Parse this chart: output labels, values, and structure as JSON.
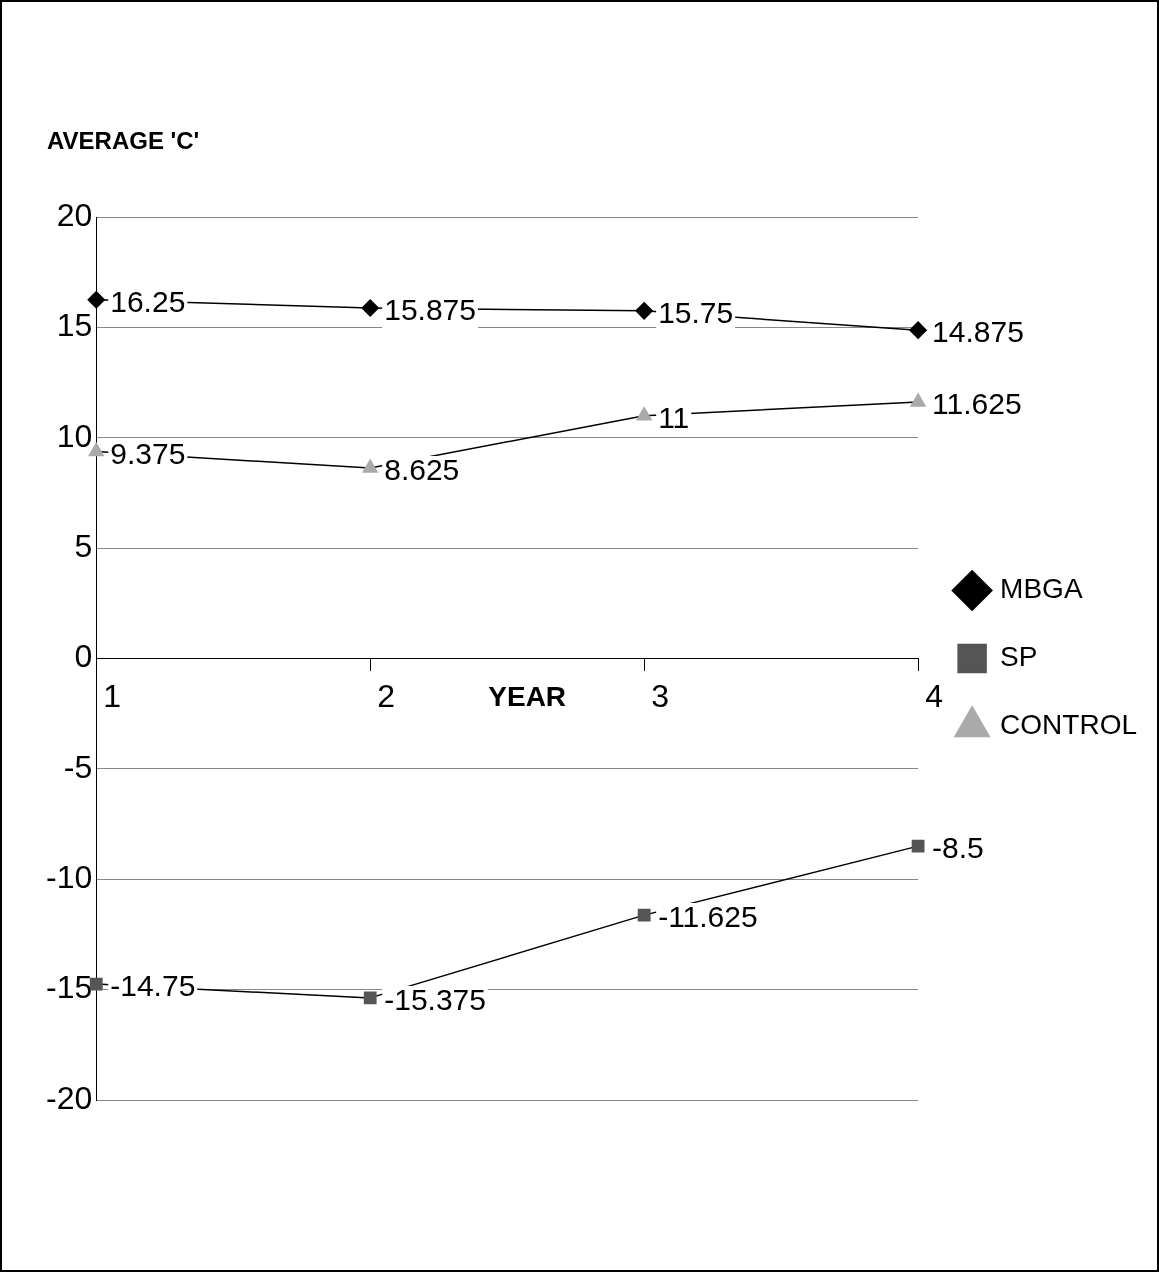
{
  "chart_data": {
    "type": "line",
    "ylabel": "AVERAGE 'C'",
    "xlabel": "YEAR",
    "categories": [
      "1",
      "2",
      "3",
      "4"
    ],
    "series": [
      {
        "name": "MBGA",
        "color": "#000000",
        "marker": "diamond",
        "values": [
          16.25,
          15.875,
          15.75,
          14.875
        ]
      },
      {
        "name": "SP",
        "color": "#555555",
        "marker": "square",
        "values": [
          -14.75,
          -15.375,
          -11.625,
          -8.5
        ]
      },
      {
        "name": "CONTROL",
        "color": "#aaaaaa",
        "marker": "triangle",
        "values": [
          9.375,
          8.625,
          11,
          11.625
        ]
      }
    ],
    "ylim": [
      -20,
      20
    ],
    "yticks": [
      -20,
      -15,
      -10,
      -5,
      0,
      5,
      10,
      15,
      20
    ],
    "grid": "y",
    "legend": "right",
    "data_labels": true,
    "line_style": "solid"
  }
}
